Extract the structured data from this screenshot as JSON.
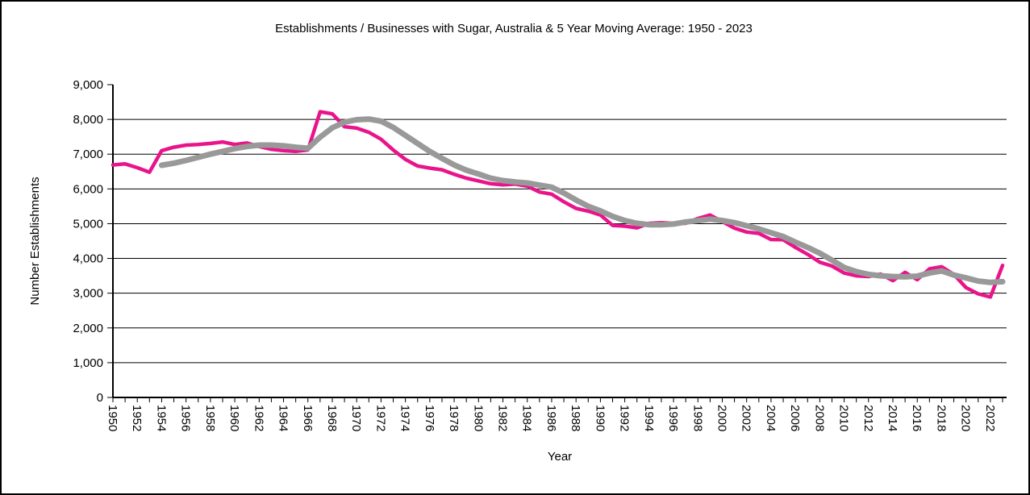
{
  "chart_data": {
    "type": "line",
    "title": "Establishments / Businesses with Sugar, Australia & 5 Year Moving Average: 1950 - 2023",
    "xlabel": "Year",
    "ylabel": "Number Establishments",
    "x_range": [
      1950,
      2023
    ],
    "ylim": [
      0,
      9000
    ],
    "y_tick_step": 1000,
    "y_tick_labels": [
      "0",
      "1,000",
      "2,000",
      "3,000",
      "4,000",
      "5,000",
      "6,000",
      "7,000",
      "8,000",
      "9,000"
    ],
    "x_tick_label_years": [
      1950,
      1952,
      1954,
      1956,
      1958,
      1960,
      1962,
      1964,
      1966,
      1968,
      1970,
      1972,
      1974,
      1976,
      1978,
      1980,
      1982,
      1984,
      1986,
      1988,
      1990,
      1992,
      1994,
      1996,
      1998,
      2000,
      2002,
      2004,
      2006,
      2008,
      2010,
      2012,
      2014,
      2016,
      2018,
      2020,
      2022
    ],
    "grid": "horizontal-only",
    "legend": "none",
    "series": [
      {
        "name": "Establishments / Businesses with Sugar",
        "color": "#E9148B",
        "stroke_width": 4.5,
        "start_year": 1950,
        "values": [
          6690,
          6720,
          6610,
          6480,
          7100,
          7200,
          7260,
          7280,
          7310,
          7350,
          7280,
          7320,
          7220,
          7140,
          7100,
          7080,
          7120,
          8220,
          8160,
          7790,
          7750,
          7630,
          7430,
          7120,
          6850,
          6660,
          6600,
          6550,
          6420,
          6310,
          6230,
          6150,
          6120,
          6140,
          6080,
          5910,
          5850,
          5630,
          5440,
          5360,
          5250,
          4950,
          4930,
          4880,
          5010,
          5030,
          5010,
          5010,
          5150,
          5250,
          5060,
          4870,
          4760,
          4720,
          4545,
          4540,
          4320,
          4120,
          3890,
          3780,
          3580,
          3500,
          3480,
          3550,
          3360,
          3600,
          3390,
          3700,
          3760,
          3540,
          3160,
          2980,
          2890,
          3800
        ]
      },
      {
        "name": "5 Year Moving Average",
        "color": "#999999",
        "stroke_width": 7,
        "start_year": 1954,
        "values": [
          6680,
          6740,
          6820,
          6910,
          7000,
          7080,
          7160,
          7220,
          7260,
          7260,
          7240,
          7200,
          7170,
          7490,
          7760,
          7920,
          7990,
          8010,
          7950,
          7770,
          7540,
          7310,
          7080,
          6880,
          6690,
          6540,
          6430,
          6310,
          6240,
          6200,
          6170,
          6110,
          6050,
          5880,
          5680,
          5500,
          5370,
          5210,
          5090,
          5010,
          4970,
          4970,
          4990,
          5050,
          5090,
          5130,
          5090,
          5030,
          4940,
          4850,
          4740,
          4630,
          4470,
          4320,
          4150,
          3950,
          3740,
          3620,
          3540,
          3500,
          3480,
          3470,
          3490,
          3580,
          3640,
          3520,
          3440,
          3350,
          3310,
          3330
        ]
      }
    ],
    "axis_color": "#000000",
    "gridline_color": "#000000",
    "background_color": "#ffffff"
  }
}
